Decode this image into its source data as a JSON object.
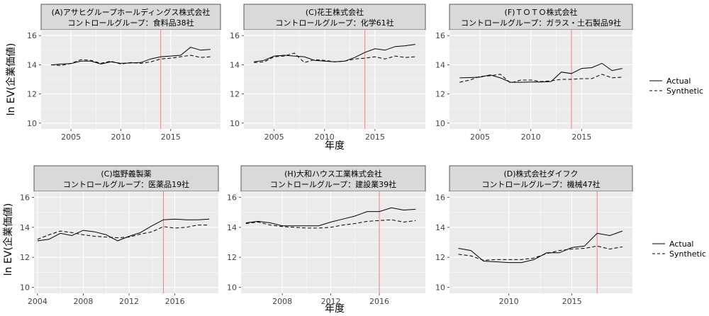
{
  "rows": [
    {
      "ylabel": "ln EV(企業価値)",
      "xlabel": "年度",
      "legend": {
        "items": [
          "Actual",
          "Synthetic"
        ]
      }
    },
    {
      "ylabel": "ln EV(企業価値)",
      "xlabel": "年度",
      "legend": {
        "items": [
          "Actual",
          "Synthetic"
        ]
      }
    }
  ],
  "colors": {
    "actual": "#000000",
    "synthetic": "#000000",
    "treatment_line": "#f08080",
    "strip": "#d9d9d9",
    "panel": "#ebebeb",
    "grid": "#ffffff"
  },
  "chart_data": [
    {
      "type": "line",
      "title": "(A)アサヒグループホールディングス株式会社",
      "subtitle": "コントロールグループ：食料品38社",
      "xlim": [
        2002,
        2020
      ],
      "ylim": [
        9.6,
        16.4
      ],
      "xticks": [
        2005,
        2010,
        2015
      ],
      "yticks": [
        10,
        12,
        14,
        16
      ],
      "treatment_year": 2014,
      "x": [
        2003,
        2004,
        2005,
        2006,
        2007,
        2008,
        2009,
        2010,
        2011,
        2012,
        2013,
        2014,
        2015,
        2016,
        2017,
        2018,
        2019
      ],
      "series": [
        {
          "name": "Actual",
          "values": [
            13.98,
            14.05,
            14.08,
            14.25,
            14.25,
            14.05,
            14.2,
            14.1,
            14.12,
            14.15,
            14.4,
            14.55,
            14.6,
            14.65,
            15.2,
            15.0,
            15.05
          ]
        },
        {
          "name": "Synthetic",
          "values": [
            14.0,
            13.95,
            14.1,
            14.35,
            14.3,
            14.1,
            14.25,
            14.05,
            14.15,
            14.1,
            14.2,
            14.4,
            14.45,
            14.55,
            14.65,
            14.5,
            14.55
          ]
        }
      ]
    },
    {
      "type": "line",
      "title": "(C)花王株式会社",
      "subtitle": "コントロールグループ：化学61社",
      "xlim": [
        2002,
        2020
      ],
      "ylim": [
        9.6,
        16.4
      ],
      "xticks": [
        2005,
        2010,
        2015
      ],
      "yticks": [
        10,
        12,
        14,
        16
      ],
      "treatment_year": 2014,
      "x": [
        2003,
        2004,
        2005,
        2006,
        2007,
        2008,
        2009,
        2010,
        2011,
        2012,
        2013,
        2014,
        2015,
        2016,
        2017,
        2018,
        2019
      ],
      "series": [
        {
          "name": "Actual",
          "values": [
            14.2,
            14.3,
            14.6,
            14.65,
            14.6,
            14.55,
            14.3,
            14.25,
            14.2,
            14.25,
            14.5,
            14.85,
            15.1,
            15.0,
            15.25,
            15.3,
            15.4
          ]
        },
        {
          "name": "Synthetic",
          "values": [
            14.15,
            14.2,
            14.55,
            14.6,
            14.8,
            14.15,
            14.35,
            14.3,
            14.2,
            14.25,
            14.4,
            14.45,
            14.55,
            14.4,
            14.6,
            14.5,
            14.55
          ]
        }
      ]
    },
    {
      "type": "line",
      "title": "(F)ＴＯＴＯ株式会社",
      "subtitle": "コントロールグループ：ガラス・土石製品9社",
      "xlim": [
        2002,
        2020
      ],
      "ylim": [
        9.6,
        16.4
      ],
      "xticks": [
        2005,
        2010,
        2015
      ],
      "yticks": [
        10,
        12,
        14,
        16
      ],
      "treatment_year": 2014,
      "x": [
        2003,
        2004,
        2005,
        2006,
        2007,
        2008,
        2009,
        2010,
        2011,
        2012,
        2013,
        2014,
        2015,
        2016,
        2017,
        2018,
        2019
      ],
      "series": [
        {
          "name": "Actual",
          "values": [
            13.1,
            13.12,
            13.15,
            13.3,
            13.1,
            12.8,
            12.8,
            12.82,
            12.82,
            12.85,
            13.5,
            13.4,
            13.75,
            13.8,
            14.1,
            13.6,
            13.75
          ]
        },
        {
          "name": "Synthetic",
          "values": [
            12.8,
            12.95,
            13.2,
            13.25,
            13.35,
            12.75,
            12.95,
            12.95,
            12.85,
            12.9,
            13.0,
            13.0,
            13.05,
            13.05,
            13.35,
            13.1,
            13.15
          ]
        }
      ]
    },
    {
      "type": "line",
      "title": "(C)塩野義製薬",
      "subtitle": "コントロールグループ：医薬品19社",
      "xlim": [
        2003.7,
        2019.8
      ],
      "ylim": [
        9.6,
        16.4
      ],
      "xticks": [
        2004,
        2008,
        2012,
        2016
      ],
      "yticks": [
        10,
        12,
        14,
        16
      ],
      "treatment_year": 2015,
      "x": [
        2004,
        2005,
        2006,
        2007,
        2008,
        2009,
        2010,
        2011,
        2012,
        2013,
        2014,
        2015,
        2016,
        2017,
        2018,
        2019
      ],
      "series": [
        {
          "name": "Actual",
          "values": [
            13.1,
            13.2,
            13.6,
            13.45,
            13.8,
            13.7,
            13.5,
            13.1,
            13.4,
            13.65,
            14.1,
            14.5,
            14.55,
            14.5,
            14.5,
            14.55
          ]
        },
        {
          "name": "Synthetic",
          "values": [
            13.2,
            13.5,
            13.75,
            13.65,
            13.5,
            13.4,
            13.35,
            13.3,
            13.35,
            13.55,
            13.7,
            14.05,
            13.95,
            14.0,
            14.15,
            14.15
          ]
        }
      ]
    },
    {
      "type": "line",
      "title": "(H)大和ハウス工業株式会社",
      "subtitle": "コントロールグループ：建設業39社",
      "xlim": [
        2004.6,
        2019.8
      ],
      "ylim": [
        9.6,
        16.4
      ],
      "xticks": [
        2008,
        2012,
        2016
      ],
      "yticks": [
        10,
        12,
        14,
        16
      ],
      "treatment_year": 2016,
      "x": [
        2005,
        2006,
        2007,
        2008,
        2009,
        2010,
        2011,
        2012,
        2013,
        2014,
        2015,
        2016,
        2017,
        2018,
        2019
      ],
      "series": [
        {
          "name": "Actual",
          "values": [
            14.3,
            14.4,
            14.3,
            14.1,
            14.1,
            14.1,
            14.1,
            14.35,
            14.55,
            14.75,
            15.05,
            15.05,
            15.3,
            15.15,
            15.2
          ]
        },
        {
          "name": "Synthetic",
          "values": [
            14.25,
            14.35,
            14.15,
            14.05,
            14.0,
            13.95,
            13.95,
            14.0,
            14.15,
            14.25,
            14.4,
            14.45,
            14.5,
            14.35,
            14.45
          ]
        }
      ]
    },
    {
      "type": "line",
      "title": "(D)株式会社ダイフク",
      "subtitle": "コントロールグループ：機械47社",
      "xlim": [
        2005.3,
        2019.8
      ],
      "ylim": [
        9.6,
        16.4
      ],
      "xticks": [
        2010,
        2015
      ],
      "yticks": [
        10,
        12,
        14,
        16
      ],
      "treatment_year": 2017,
      "x": [
        2006,
        2007,
        2008,
        2009,
        2010,
        2011,
        2012,
        2013,
        2014,
        2015,
        2016,
        2017,
        2018,
        2019
      ],
      "series": [
        {
          "name": "Actual",
          "values": [
            12.6,
            12.45,
            11.75,
            11.7,
            11.65,
            11.65,
            11.85,
            12.3,
            12.3,
            12.65,
            12.75,
            13.6,
            13.45,
            13.75
          ]
        },
        {
          "name": "Synthetic",
          "values": [
            12.2,
            12.1,
            11.8,
            11.85,
            11.85,
            11.85,
            11.95,
            12.25,
            12.45,
            12.55,
            12.6,
            12.75,
            12.55,
            12.7
          ]
        }
      ]
    }
  ]
}
